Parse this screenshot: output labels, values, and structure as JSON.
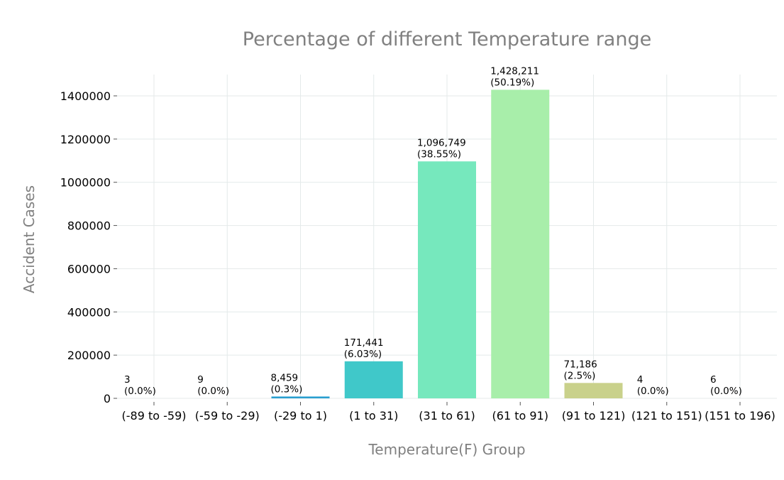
{
  "chart_data": {
    "type": "bar",
    "title": "Percentage of different Temperature range",
    "xlabel": "Temperature(F) Group",
    "ylabel": "Accident Cases",
    "categories": [
      "(-89 to -59)",
      "(-59 to -29)",
      "(-29 to 1)",
      "(1 to 31)",
      "(31 to 61)",
      "(61 to 91)",
      "(91 to 121)",
      "(121 to 151)",
      "(151 to 196)"
    ],
    "values": [
      3,
      9,
      8459,
      171441,
      1096749,
      1428211,
      71186,
      4,
      6
    ],
    "value_labels": [
      "3",
      "9",
      "8,459",
      "171,441",
      "1,096,749",
      "1,428,211",
      "71,186",
      "4",
      "6"
    ],
    "percent_labels": [
      "(0.0%)",
      "(0.0%)",
      "(0.3%)",
      "(6.03%)",
      "(38.55%)",
      "(50.19%)",
      "(2.5%)",
      "(0.0%)",
      "(0.0%)"
    ],
    "colors": [
      "#3a3f8f",
      "#2d5ea8",
      "#2a9fd0",
      "#40c8c9",
      "#76e8bd",
      "#a8eeaa",
      "#c9d18b",
      "#c9d18b",
      "#c9d18b"
    ],
    "yticks": [
      0,
      200000,
      400000,
      600000,
      800000,
      1000000,
      1200000,
      1400000
    ],
    "ytick_labels": [
      "0",
      "200000",
      "400000",
      "600000",
      "800000",
      "1000000",
      "1200000",
      "1400000"
    ],
    "ylim": [
      0,
      1500000
    ],
    "grid": true,
    "legend": "none"
  }
}
